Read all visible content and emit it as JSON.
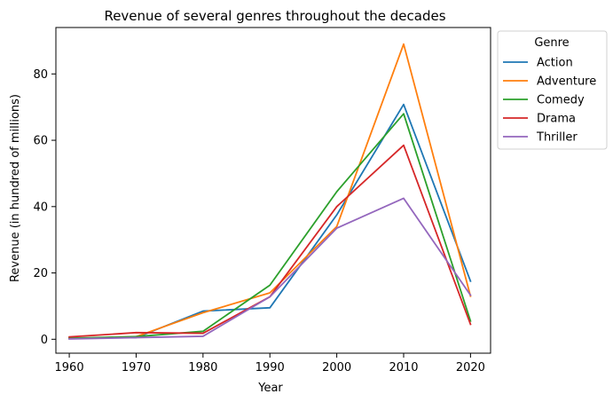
{
  "chart_data": {
    "type": "line",
    "title": "Revenue of several genres throughout the decades",
    "xlabel": "Year",
    "ylabel": "Revenue (in hundred of millions)",
    "x": [
      1960,
      1970,
      1980,
      1990,
      2000,
      2010,
      2020
    ],
    "xticks": [
      "1960",
      "1970",
      "1980",
      "1990",
      "2000",
      "2010",
      "2020"
    ],
    "yticks": [
      "0",
      "20",
      "40",
      "60",
      "80"
    ],
    "xlim": [
      1958.0,
      2023.0
    ],
    "ylim": [
      -4.2,
      94.0
    ],
    "grid": false,
    "legend": {
      "title": "Genre",
      "placement": "outside-right-top"
    },
    "series": [
      {
        "name": "Action",
        "color": "#1f77b4",
        "values": [
          0.3,
          0.5,
          8.5,
          9.5,
          37.5,
          70.8,
          17.5
        ]
      },
      {
        "name": "Adventure",
        "color": "#ff7f0e",
        "values": [
          0.2,
          0.8,
          8.0,
          14.0,
          34.0,
          89.0,
          13.0
        ]
      },
      {
        "name": "Comedy",
        "color": "#2ca02c",
        "values": [
          0.3,
          0.8,
          2.4,
          16.3,
          44.5,
          68.0,
          5.5
        ]
      },
      {
        "name": "Drama",
        "color": "#d62728",
        "values": [
          0.7,
          2.0,
          1.8,
          12.8,
          40.0,
          58.5,
          4.5
        ]
      },
      {
        "name": "Thriller",
        "color": "#9467bd",
        "values": [
          0.1,
          0.5,
          0.9,
          12.8,
          33.5,
          42.5,
          13.3
        ]
      }
    ]
  }
}
